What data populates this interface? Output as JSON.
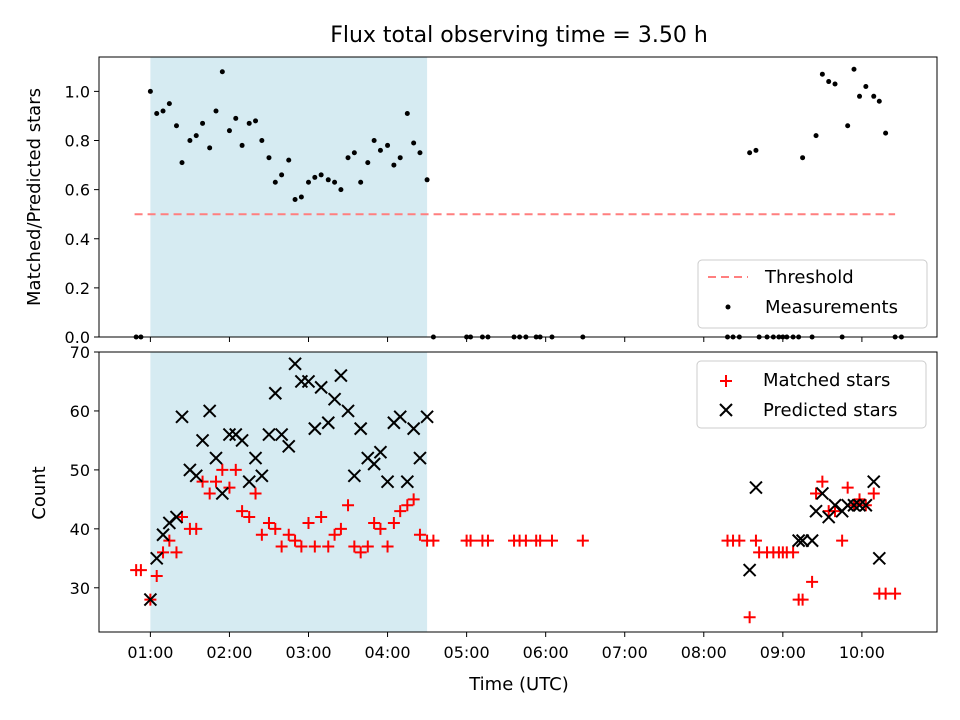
{
  "chart_data": [
    {
      "type": "scatter",
      "title": "Flux total observing time = 3.50 h",
      "ylabel": "Matched/Predicted stars",
      "xlim": [
        0.35,
        10.95
      ],
      "ylim": [
        0,
        1.14
      ],
      "yticks": [
        0.0,
        0.2,
        0.4,
        0.6,
        0.8,
        1.0
      ],
      "ytick_labels": [
        "0.0",
        "0.2",
        "0.4",
        "0.6",
        "0.8",
        "1.0"
      ],
      "shaded_span": [
        1.0,
        4.5
      ],
      "threshold": {
        "name": "Threshold",
        "y": 0.5,
        "x_range": [
          0.8,
          10.42
        ],
        "color": "#ff7f7f"
      },
      "legend": [
        {
          "label": "Threshold",
          "color": "#ff7f7f"
        },
        {
          "label": "Measurements",
          "color": "#000000"
        }
      ],
      "series": [
        {
          "name": "Measurements",
          "color": "#000000",
          "points": [
            [
              0.82,
              0.0
            ],
            [
              0.88,
              0.0
            ],
            [
              1.0,
              1.0
            ],
            [
              1.08,
              0.91
            ],
            [
              1.16,
              0.92
            ],
            [
              1.24,
              0.95
            ],
            [
              1.33,
              0.86
            ],
            [
              1.4,
              0.71
            ],
            [
              1.5,
              0.8
            ],
            [
              1.58,
              0.82
            ],
            [
              1.66,
              0.87
            ],
            [
              1.75,
              0.77
            ],
            [
              1.83,
              0.92
            ],
            [
              1.91,
              1.08
            ],
            [
              2.0,
              0.84
            ],
            [
              2.08,
              0.89
            ],
            [
              2.16,
              0.78
            ],
            [
              2.25,
              0.87
            ],
            [
              2.33,
              0.88
            ],
            [
              2.41,
              0.8
            ],
            [
              2.5,
              0.73
            ],
            [
              2.58,
              0.63
            ],
            [
              2.66,
              0.66
            ],
            [
              2.75,
              0.72
            ],
            [
              2.83,
              0.56
            ],
            [
              2.91,
              0.57
            ],
            [
              3.0,
              0.63
            ],
            [
              3.08,
              0.65
            ],
            [
              3.16,
              0.66
            ],
            [
              3.25,
              0.64
            ],
            [
              3.33,
              0.63
            ],
            [
              3.41,
              0.6
            ],
            [
              3.5,
              0.73
            ],
            [
              3.58,
              0.75
            ],
            [
              3.66,
              0.63
            ],
            [
              3.75,
              0.71
            ],
            [
              3.83,
              0.8
            ],
            [
              3.91,
              0.76
            ],
            [
              4.0,
              0.78
            ],
            [
              4.08,
              0.7
            ],
            [
              4.16,
              0.73
            ],
            [
              4.25,
              0.91
            ],
            [
              4.33,
              0.79
            ],
            [
              4.41,
              0.75
            ],
            [
              4.5,
              0.64
            ],
            [
              4.58,
              0.0
            ],
            [
              5.0,
              0.0
            ],
            [
              5.05,
              0.0
            ],
            [
              5.2,
              0.0
            ],
            [
              5.27,
              0.0
            ],
            [
              5.6,
              0.0
            ],
            [
              5.67,
              0.0
            ],
            [
              5.75,
              0.0
            ],
            [
              5.88,
              0.0
            ],
            [
              5.93,
              0.0
            ],
            [
              6.08,
              0.0
            ],
            [
              6.47,
              0.0
            ],
            [
              8.3,
              0.0
            ],
            [
              8.37,
              0.0
            ],
            [
              8.45,
              0.0
            ],
            [
              8.58,
              0.75
            ],
            [
              8.66,
              0.76
            ],
            [
              8.7,
              0.0
            ],
            [
              8.8,
              0.0
            ],
            [
              8.88,
              0.0
            ],
            [
              8.95,
              0.0
            ],
            [
              9.0,
              0.0
            ],
            [
              9.05,
              0.0
            ],
            [
              9.13,
              0.0
            ],
            [
              9.2,
              0.0
            ],
            [
              9.25,
              0.73
            ],
            [
              9.37,
              0.0
            ],
            [
              9.42,
              0.82
            ],
            [
              9.5,
              1.07
            ],
            [
              9.58,
              1.04
            ],
            [
              9.66,
              1.03
            ],
            [
              9.75,
              0.0
            ],
            [
              9.82,
              0.86
            ],
            [
              9.9,
              1.09
            ],
            [
              9.97,
              0.98
            ],
            [
              10.05,
              1.02
            ],
            [
              10.15,
              0.98
            ],
            [
              10.22,
              0.96
            ],
            [
              10.3,
              0.83
            ],
            [
              10.42,
              0.0
            ],
            [
              10.5,
              0.0
            ]
          ]
        }
      ]
    },
    {
      "type": "scatter",
      "xlabel": "Time (UTC)",
      "ylabel": "Count",
      "xlim": [
        0.35,
        10.95
      ],
      "ylim": [
        22.5,
        70
      ],
      "xticks": [
        1,
        2,
        3,
        4,
        5,
        6,
        7,
        8,
        9,
        10
      ],
      "xtick_labels": [
        "01:00",
        "02:00",
        "03:00",
        "04:00",
        "05:00",
        "06:00",
        "07:00",
        "08:00",
        "09:00",
        "10:00"
      ],
      "yticks": [
        30,
        40,
        50,
        60,
        70
      ],
      "ytick_labels": [
        "30",
        "40",
        "50",
        "60",
        "70"
      ],
      "shaded_span": [
        1.0,
        4.5
      ],
      "legend": [
        {
          "label": "Matched stars",
          "color": "#ff0000",
          "marker": "+"
        },
        {
          "label": "Predicted stars",
          "color": "#000000",
          "marker": "x"
        }
      ],
      "series": [
        {
          "name": "Matched stars",
          "color": "#ff0000",
          "marker": "+",
          "points": [
            [
              0.82,
              33
            ],
            [
              0.88,
              33
            ],
            [
              1.0,
              28
            ],
            [
              1.08,
              32
            ],
            [
              1.16,
              36
            ],
            [
              1.24,
              38
            ],
            [
              1.33,
              36
            ],
            [
              1.4,
              42
            ],
            [
              1.5,
              40
            ],
            [
              1.58,
              40
            ],
            [
              1.66,
              48
            ],
            [
              1.75,
              46
            ],
            [
              1.83,
              48
            ],
            [
              1.91,
              50
            ],
            [
              2.0,
              47
            ],
            [
              2.08,
              50
            ],
            [
              2.16,
              43
            ],
            [
              2.25,
              42
            ],
            [
              2.33,
              46
            ],
            [
              2.41,
              39
            ],
            [
              2.5,
              41
            ],
            [
              2.58,
              40
            ],
            [
              2.66,
              37
            ],
            [
              2.75,
              39
            ],
            [
              2.83,
              38
            ],
            [
              2.91,
              37
            ],
            [
              3.0,
              41
            ],
            [
              3.08,
              37
            ],
            [
              3.16,
              42
            ],
            [
              3.25,
              37
            ],
            [
              3.33,
              39
            ],
            [
              3.41,
              40
            ],
            [
              3.5,
              44
            ],
            [
              3.58,
              37
            ],
            [
              3.66,
              36
            ],
            [
              3.75,
              37
            ],
            [
              3.83,
              41
            ],
            [
              3.91,
              40
            ],
            [
              4.0,
              37
            ],
            [
              4.08,
              41
            ],
            [
              4.16,
              43
            ],
            [
              4.25,
              44
            ],
            [
              4.33,
              45
            ],
            [
              4.41,
              39
            ],
            [
              4.5,
              38
            ],
            [
              4.58,
              38
            ],
            [
              5.0,
              38
            ],
            [
              5.05,
              38
            ],
            [
              5.2,
              38
            ],
            [
              5.27,
              38
            ],
            [
              5.6,
              38
            ],
            [
              5.67,
              38
            ],
            [
              5.75,
              38
            ],
            [
              5.88,
              38
            ],
            [
              5.93,
              38
            ],
            [
              6.08,
              38
            ],
            [
              6.47,
              38
            ],
            [
              8.3,
              38
            ],
            [
              8.37,
              38
            ],
            [
              8.45,
              38
            ],
            [
              8.58,
              25
            ],
            [
              8.66,
              38
            ],
            [
              8.7,
              36
            ],
            [
              8.8,
              36
            ],
            [
              8.88,
              36
            ],
            [
              8.95,
              36
            ],
            [
              9.0,
              36
            ],
            [
              9.05,
              36
            ],
            [
              9.13,
              36
            ],
            [
              9.2,
              28
            ],
            [
              9.25,
              28
            ],
            [
              9.37,
              31
            ],
            [
              9.42,
              46
            ],
            [
              9.5,
              48
            ],
            [
              9.58,
              43
            ],
            [
              9.66,
              43
            ],
            [
              9.75,
              38
            ],
            [
              9.82,
              47
            ],
            [
              9.9,
              44
            ],
            [
              9.97,
              45
            ],
            [
              10.05,
              44
            ],
            [
              10.15,
              46
            ],
            [
              10.22,
              29
            ],
            [
              10.3,
              29
            ],
            [
              10.42,
              29
            ]
          ]
        },
        {
          "name": "Predicted stars",
          "color": "#000000",
          "marker": "x",
          "points": [
            [
              1.0,
              28
            ],
            [
              1.08,
              35
            ],
            [
              1.16,
              39
            ],
            [
              1.24,
              41
            ],
            [
              1.33,
              42
            ],
            [
              1.4,
              59
            ],
            [
              1.5,
              50
            ],
            [
              1.58,
              49
            ],
            [
              1.66,
              55
            ],
            [
              1.75,
              60
            ],
            [
              1.83,
              52
            ],
            [
              1.91,
              46
            ],
            [
              2.0,
              56
            ],
            [
              2.08,
              56
            ],
            [
              2.16,
              55
            ],
            [
              2.25,
              48
            ],
            [
              2.33,
              52
            ],
            [
              2.41,
              49
            ],
            [
              2.5,
              56
            ],
            [
              2.58,
              63
            ],
            [
              2.66,
              56
            ],
            [
              2.75,
              54
            ],
            [
              2.83,
              68
            ],
            [
              2.91,
              65
            ],
            [
              3.0,
              65
            ],
            [
              3.08,
              57
            ],
            [
              3.16,
              64
            ],
            [
              3.25,
              58
            ],
            [
              3.33,
              62
            ],
            [
              3.41,
              66
            ],
            [
              3.5,
              60
            ],
            [
              3.58,
              49
            ],
            [
              3.66,
              57
            ],
            [
              3.75,
              52
            ],
            [
              3.83,
              51
            ],
            [
              3.91,
              53
            ],
            [
              4.0,
              48
            ],
            [
              4.08,
              58
            ],
            [
              4.16,
              59
            ],
            [
              4.25,
              48
            ],
            [
              4.33,
              57
            ],
            [
              4.41,
              52
            ],
            [
              4.5,
              59
            ],
            [
              8.58,
              33
            ],
            [
              8.66,
              47
            ],
            [
              9.2,
              38
            ],
            [
              9.25,
              38
            ],
            [
              9.37,
              38
            ],
            [
              9.42,
              43
            ],
            [
              9.5,
              46
            ],
            [
              9.58,
              42
            ],
            [
              9.66,
              44
            ],
            [
              9.75,
              43
            ],
            [
              9.82,
              44
            ],
            [
              9.9,
              44
            ],
            [
              9.97,
              44
            ],
            [
              10.05,
              44
            ],
            [
              10.15,
              48
            ],
            [
              10.22,
              35
            ]
          ]
        }
      ]
    }
  ]
}
